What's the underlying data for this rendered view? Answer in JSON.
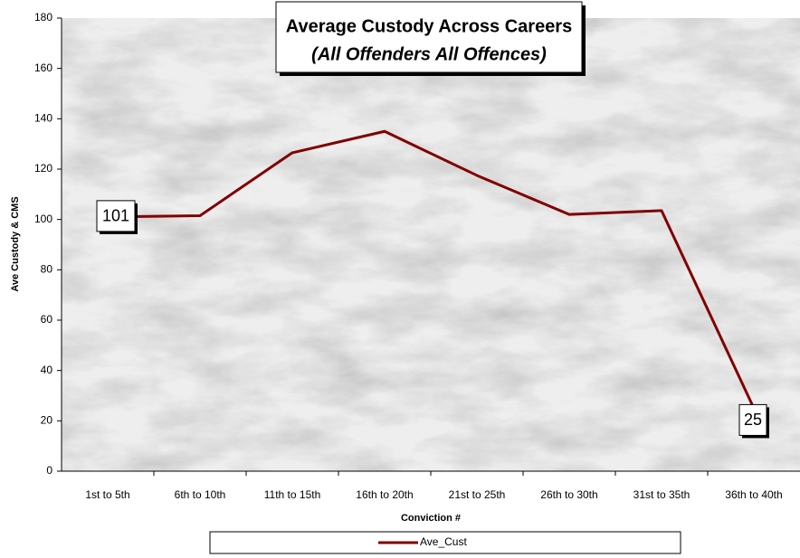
{
  "chart_data": {
    "type": "line",
    "title": "Average Custody Across Careers",
    "subtitle": "(All Offenders All Offences)",
    "x_label": "Conviction #",
    "y_label": "Ave Custody & CMS",
    "categories": [
      "1st to 5th",
      "6th to 10th",
      "11th to 15th",
      "16th to 20th",
      "21st to 25th",
      "26th to 30th",
      "31st to 35th",
      "36th to 40th"
    ],
    "series": [
      {
        "name": "Ave_Cust",
        "color": "#800000",
        "values": [
          101,
          101.5,
          126.5,
          135,
          117.5,
          102,
          103.5,
          25
        ],
        "value_labels": [
          "101",
          null,
          null,
          null,
          null,
          null,
          null,
          "25"
        ]
      }
    ],
    "ylim": [
      0,
      180
    ],
    "yticks": [
      0,
      20,
      40,
      60,
      80,
      100,
      120,
      140,
      160,
      180
    ],
    "legend": "bottom"
  }
}
